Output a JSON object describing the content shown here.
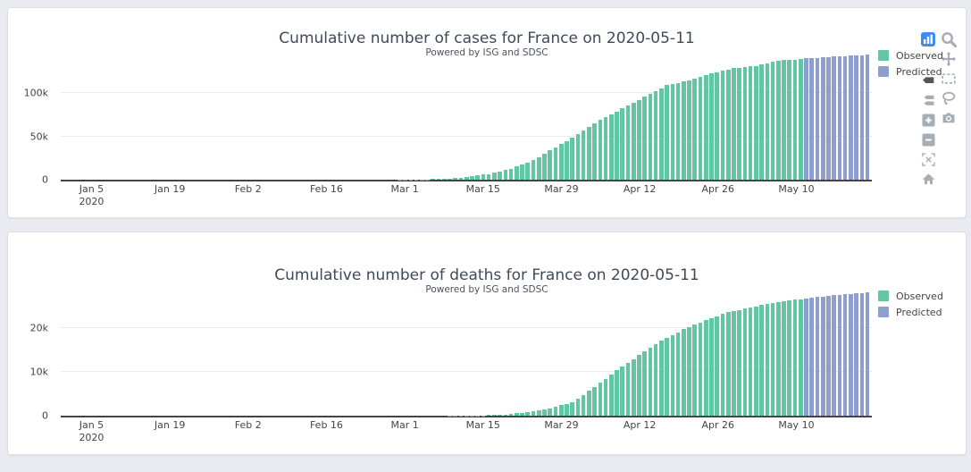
{
  "page": {
    "background": "#e9ebf1"
  },
  "colors": {
    "observed": "#63c6a2",
    "predicted": "#8e9fcf",
    "axis_line": "#444444",
    "grid_line": "#e8ecf1",
    "text": "#444444",
    "modebar_icon": "#a7adb5",
    "modebar_icon_dark": "#52565b",
    "modebar_logo_bg": "#3d8df5",
    "card_background": "#ffffff",
    "card_border": "#dcdfe6"
  },
  "modebar": {
    "left_buttons": [
      {
        "name": "plotly-logo",
        "label": "Produced with Plotly"
      },
      {
        "name": "hover-closest",
        "label": "Show closest data on hover"
      },
      {
        "name": "hover-compare",
        "label": "Compare data on hover"
      },
      {
        "name": "zoom-in",
        "label": "Zoom in"
      },
      {
        "name": "zoom-out",
        "label": "Zoom out"
      },
      {
        "name": "autoscale",
        "label": "Autoscale"
      },
      {
        "name": "reset-axes",
        "label": "Reset axes"
      }
    ],
    "right_buttons": [
      {
        "name": "zoom",
        "label": "Zoom"
      },
      {
        "name": "pan",
        "label": "Pan"
      },
      {
        "name": "box-select",
        "label": "Box Select"
      },
      {
        "name": "lasso-select",
        "label": "Lasso Select"
      },
      {
        "name": "download-png",
        "label": "Download plot as a png"
      }
    ]
  },
  "chart_data": [
    {
      "type": "bar",
      "title": "Cumulative number of cases for France on 2020-05-11",
      "subtitle": "Powered by ISG and SDSC",
      "xlabel": "",
      "ylabel": "",
      "x_start": "2019-12-31",
      "x_end": "2020-05-23",
      "observed_through": "2020-05-11",
      "ylim": [
        0,
        144300
      ],
      "grid": true,
      "legend_position": "top-right",
      "yticks": [
        {
          "value": 0,
          "label": "0"
        },
        {
          "value": 50000,
          "label": "50k"
        },
        {
          "value": 100000,
          "label": "100k"
        }
      ],
      "xticks": [
        {
          "date": "2020-01-05",
          "label": "Jan 5",
          "sublabel": "2020"
        },
        {
          "date": "2020-01-19",
          "label": "Jan 19"
        },
        {
          "date": "2020-02-02",
          "label": "Feb 2"
        },
        {
          "date": "2020-02-16",
          "label": "Feb 16"
        },
        {
          "date": "2020-03-01",
          "label": "Mar 1"
        },
        {
          "date": "2020-03-15",
          "label": "Mar 15"
        },
        {
          "date": "2020-03-29",
          "label": "Mar 29"
        },
        {
          "date": "2020-04-12",
          "label": "Apr 12"
        },
        {
          "date": "2020-04-26",
          "label": "Apr 26"
        },
        {
          "date": "2020-05-10",
          "label": "May 10"
        }
      ],
      "legend": [
        {
          "label": "Observed",
          "color": "#63c6a2"
        },
        {
          "label": "Predicted",
          "color": "#8e9fcf"
        }
      ],
      "series": [
        {
          "name": "Observed",
          "keypoints": [
            [
              "2019-12-31",
              0
            ],
            [
              "2020-01-24",
              2
            ],
            [
              "2020-02-14",
              11
            ],
            [
              "2020-02-25",
              13
            ],
            [
              "2020-02-29",
              100
            ],
            [
              "2020-03-04",
              285
            ],
            [
              "2020-03-08",
              949
            ],
            [
              "2020-03-12",
              2876
            ],
            [
              "2020-03-16",
              6633
            ],
            [
              "2020-03-20",
              12612
            ],
            [
              "2020-03-24",
              22302
            ],
            [
              "2020-03-28",
              37575
            ],
            [
              "2020-04-01",
              52128
            ],
            [
              "2020-04-05",
              68605
            ],
            [
              "2020-04-09",
              82048
            ],
            [
              "2020-04-13",
              95403
            ],
            [
              "2020-04-17",
              108847
            ],
            [
              "2020-04-21",
              114657
            ],
            [
              "2020-04-25",
              122577
            ],
            [
              "2020-04-29",
              128442
            ],
            [
              "2020-05-03",
              131287
            ],
            [
              "2020-05-07",
              137150
            ],
            [
              "2020-05-11",
              139063
            ]
          ]
        },
        {
          "name": "Predicted",
          "keypoints": [
            [
              "2020-05-12",
              139700
            ],
            [
              "2020-05-14",
              140600
            ],
            [
              "2020-05-17",
              141900
            ],
            [
              "2020-05-20",
              143100
            ],
            [
              "2020-05-23",
              144100
            ]
          ]
        }
      ]
    },
    {
      "type": "bar",
      "title": "Cumulative number of deaths for France on 2020-05-11",
      "subtitle": "Powered by ISG and SDSC",
      "xlabel": "",
      "ylabel": "",
      "x_start": "2019-12-31",
      "x_end": "2020-05-23",
      "observed_through": "2020-05-11",
      "ylim": [
        0,
        28600
      ],
      "grid": true,
      "legend_position": "top-right",
      "yticks": [
        {
          "value": 0,
          "label": "0"
        },
        {
          "value": 10000,
          "label": "10k"
        },
        {
          "value": 20000,
          "label": "20k"
        }
      ],
      "xticks": [
        {
          "date": "2020-01-05",
          "label": "Jan 5",
          "sublabel": "2020"
        },
        {
          "date": "2020-01-19",
          "label": "Jan 19"
        },
        {
          "date": "2020-02-02",
          "label": "Feb 2"
        },
        {
          "date": "2020-02-16",
          "label": "Feb 16"
        },
        {
          "date": "2020-03-01",
          "label": "Mar 1"
        },
        {
          "date": "2020-03-15",
          "label": "Mar 15"
        },
        {
          "date": "2020-03-29",
          "label": "Mar 29"
        },
        {
          "date": "2020-04-12",
          "label": "Apr 12"
        },
        {
          "date": "2020-04-26",
          "label": "Apr 26"
        },
        {
          "date": "2020-05-10",
          "label": "May 10"
        }
      ],
      "legend": [
        {
          "label": "Observed",
          "color": "#63c6a2"
        },
        {
          "label": "Predicted",
          "color": "#8e9fcf"
        }
      ],
      "series": [
        {
          "name": "Observed",
          "keypoints": [
            [
              "2019-12-31",
              0
            ],
            [
              "2020-02-15",
              1
            ],
            [
              "2020-03-01",
              2
            ],
            [
              "2020-03-08",
              11
            ],
            [
              "2020-03-15",
              91
            ],
            [
              "2020-03-19",
              264
            ],
            [
              "2020-03-23",
              860
            ],
            [
              "2020-03-27",
              1696
            ],
            [
              "2020-03-31",
              3024
            ],
            [
              "2020-04-04",
              6507
            ],
            [
              "2020-04-08",
              10328
            ],
            [
              "2020-04-12",
              13832
            ],
            [
              "2020-04-16",
              17167
            ],
            [
              "2020-04-20",
              19718
            ],
            [
              "2020-04-24",
              21856
            ],
            [
              "2020-04-28",
              23660
            ],
            [
              "2020-05-02",
              24760
            ],
            [
              "2020-05-06",
              25809
            ],
            [
              "2020-05-11",
              26643
            ]
          ]
        },
        {
          "name": "Predicted",
          "keypoints": [
            [
              "2020-05-12",
              26800
            ],
            [
              "2020-05-14",
              27100
            ],
            [
              "2020-05-17",
              27500
            ],
            [
              "2020-05-20",
              27850
            ],
            [
              "2020-05-23",
              28150
            ]
          ]
        }
      ]
    }
  ]
}
